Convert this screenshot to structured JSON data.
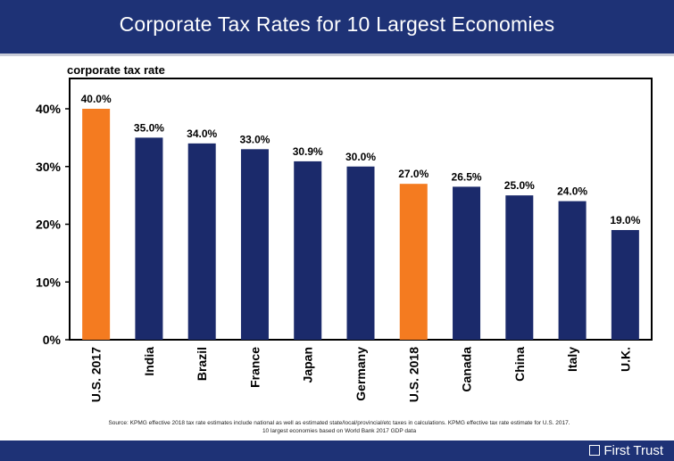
{
  "header": {
    "title": "Corporate Tax Rates for 10 Largest Economies"
  },
  "chart_data": {
    "type": "bar",
    "ylabel": "corporate tax rate",
    "categories": [
      "U.S. 2017",
      "India",
      "Brazil",
      "France",
      "Japan",
      "Germany",
      "U.S. 2018",
      "Canada",
      "China",
      "Italy",
      "U.K."
    ],
    "values": [
      40.0,
      35.0,
      34.0,
      33.0,
      30.9,
      30.0,
      27.0,
      26.5,
      25.0,
      24.0,
      19.0
    ],
    "data_labels": [
      "40.0%",
      "35.0%",
      "34.0%",
      "33.0%",
      "30.9%",
      "30.0%",
      "27.0%",
      "26.5%",
      "25.0%",
      "24.0%",
      "19.0%"
    ],
    "highlighted": [
      "U.S. 2017",
      "U.S. 2018"
    ],
    "ylim": [
      0,
      40
    ],
    "yticks": [
      0,
      10,
      20,
      30,
      40
    ],
    "ytick_labels": [
      "0%",
      "10%",
      "20%",
      "30%",
      "40%"
    ],
    "grid": false,
    "legend": "none",
    "colors": {
      "default": "#1b2a6b",
      "highlight": "#f47b20"
    }
  },
  "footer": {
    "source_line1": "Source: KPMG effective 2018 tax rate estimates include national as well as estimated state/local/provincial/etc taxes in calculations. KPMG effective tax rate estimate for U.S. 2017.",
    "source_line2": "10 largest economies based on World Bank 2017 GDP data",
    "brand": "First Trust"
  }
}
